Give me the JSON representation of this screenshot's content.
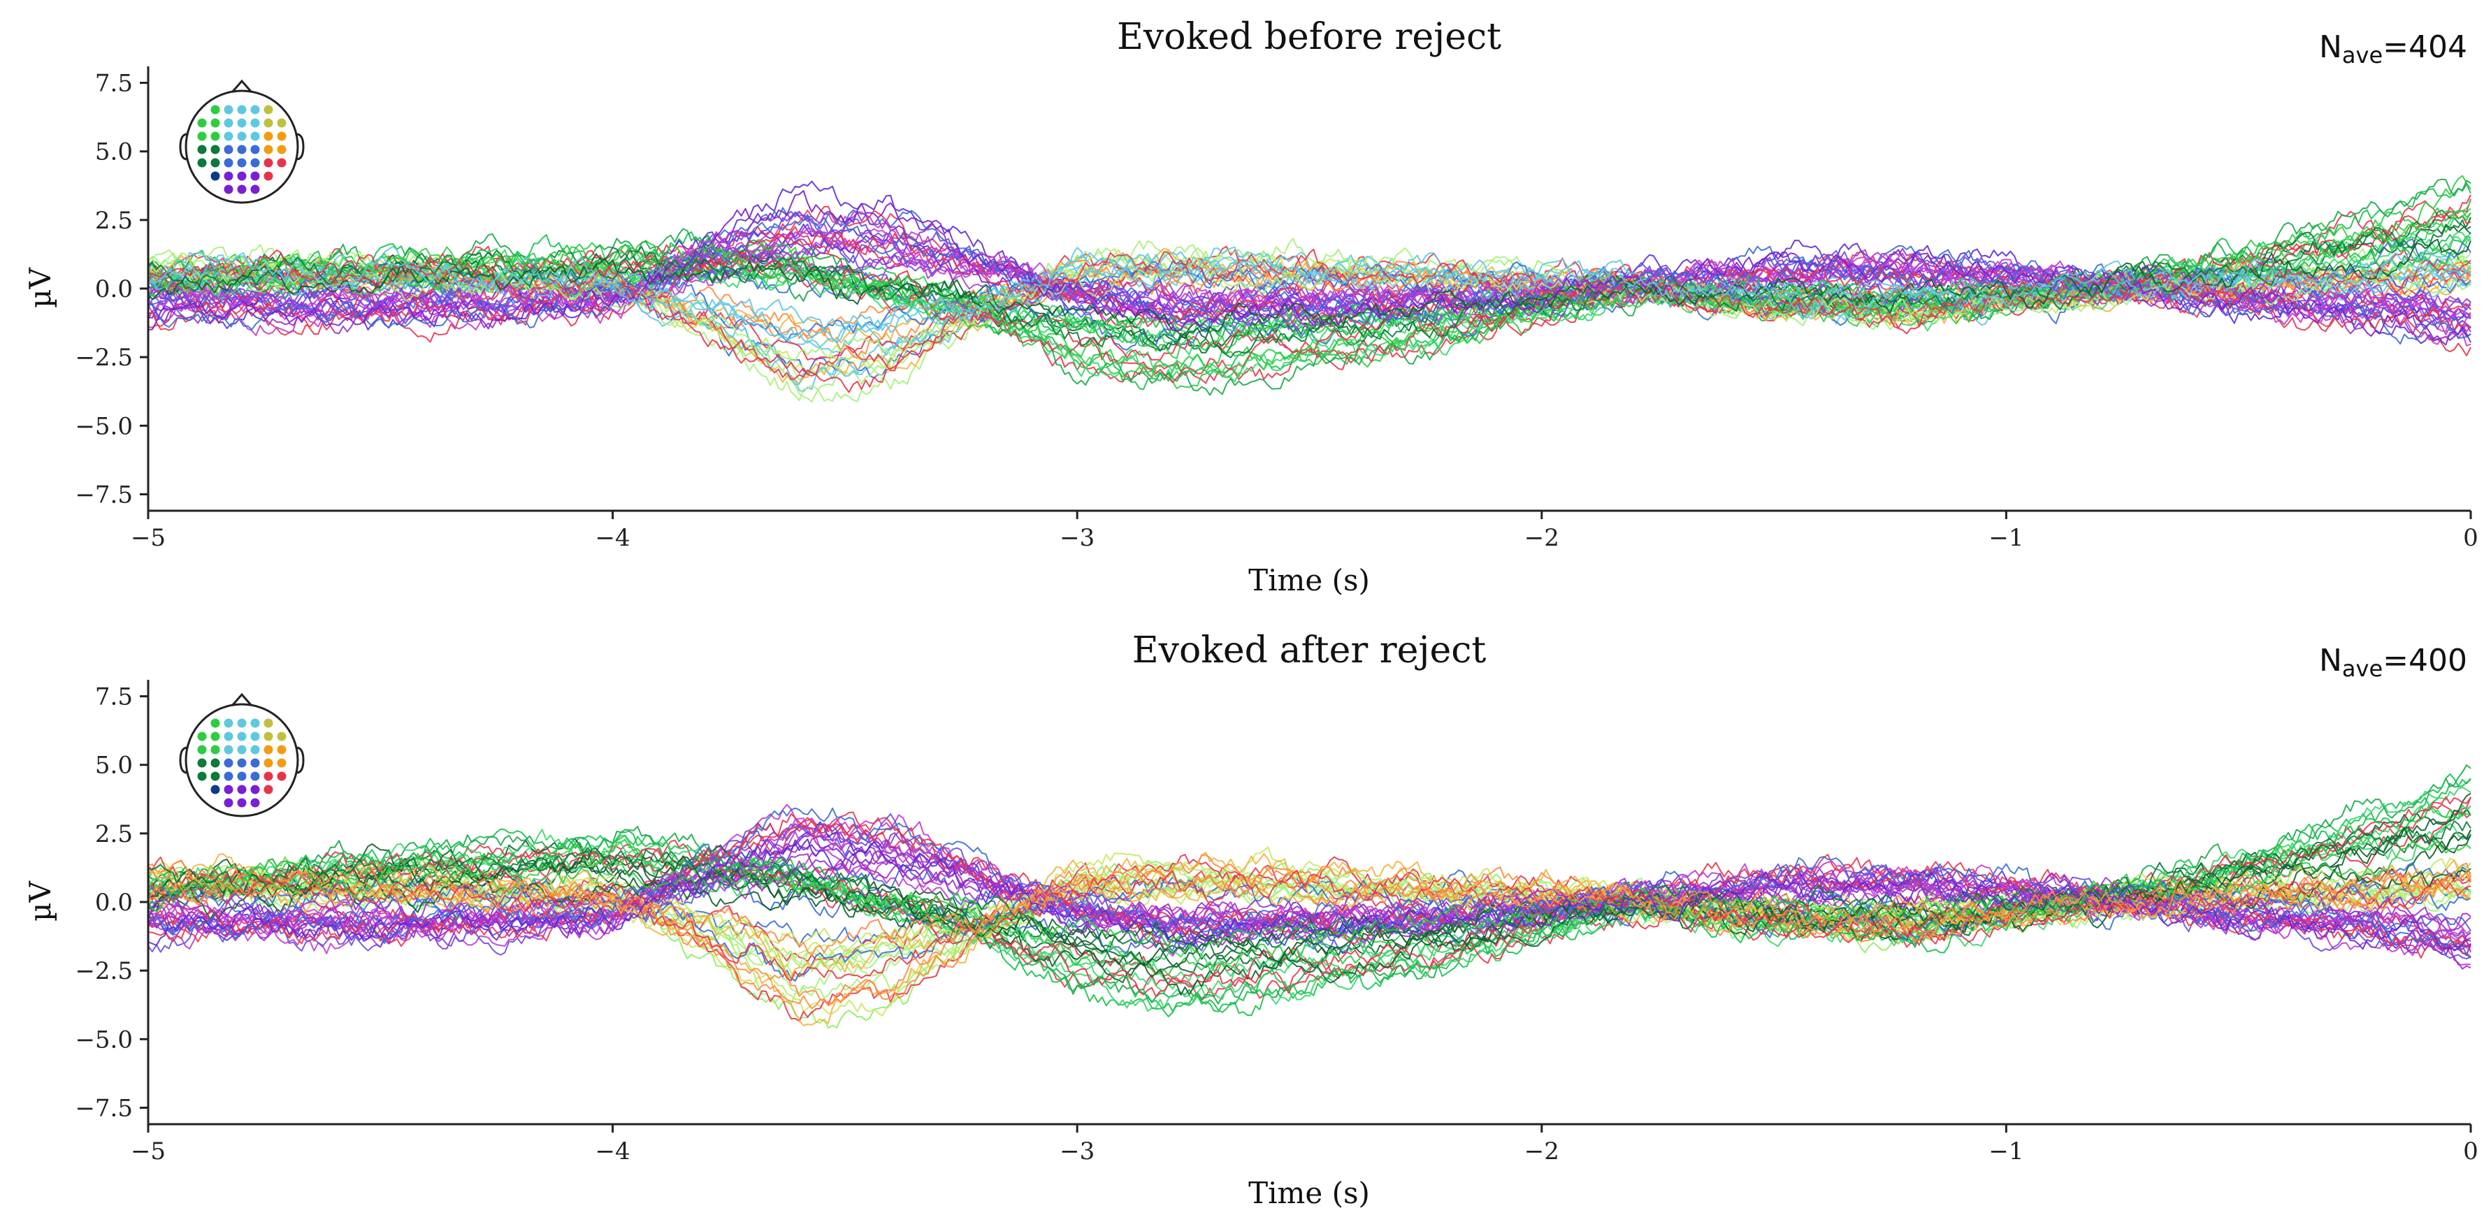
{
  "chart_data": [
    {
      "type": "line",
      "title": "Evoked before reject",
      "nave_label": "N",
      "nave_sub": "ave",
      "nave_value": "=404",
      "xlabel": "Time (s)",
      "ylabel": "µV",
      "xlim": [
        -5,
        0
      ],
      "ylim": [
        -8.1,
        8.1
      ],
      "xticks": [
        -5,
        -4,
        -3,
        -2,
        -1,
        0
      ],
      "xtick_labels": [
        "−5",
        "−4",
        "−3",
        "−2",
        "−1",
        "0"
      ],
      "yticks": [
        7.5,
        5.0,
        2.5,
        0.0,
        -2.5,
        -5.0,
        -7.5
      ],
      "ytick_labels": [
        "7.5",
        "5.0",
        "2.5",
        "0.0",
        "−2.5",
        "−5.0",
        "−7.5"
      ],
      "grid": false,
      "n_channels": 60,
      "series_profile": {
        "x": [
          -5.0,
          -4.5,
          -4.0,
          -3.8,
          -3.6,
          -3.4,
          -3.2,
          -3.0,
          -2.8,
          -2.5,
          -2.2,
          -2.0,
          -1.8,
          -1.5,
          -1.2,
          -1.0,
          -0.7,
          -0.5,
          -0.2,
          0.0
        ],
        "occipital_green": [
          0.5,
          1.0,
          1.2,
          1.5,
          1.0,
          0.0,
          -1.0,
          -2.5,
          -3.2,
          -2.5,
          -1.8,
          -0.8,
          0.0,
          -0.5,
          -0.8,
          -0.4,
          0.5,
          1.2,
          2.5,
          3.6
        ],
        "frontal_purple": [
          -0.8,
          -1.0,
          -0.6,
          1.5,
          2.8,
          2.4,
          1.0,
          -0.3,
          -1.0,
          -0.8,
          -0.6,
          -0.3,
          0.2,
          0.8,
          0.9,
          0.6,
          0.0,
          -0.6,
          -1.0,
          -1.8
        ],
        "temporal_lightgreen": [
          0.8,
          0.6,
          0.2,
          -1.5,
          -3.6,
          -3.0,
          -1.0,
          0.8,
          1.0,
          0.8,
          0.5,
          0.4,
          0.0,
          -0.8,
          -1.0,
          -0.5,
          0.0,
          0.2,
          0.5,
          0.8
        ]
      },
      "sensor_colors": [
        "#2ecc40",
        "#0b7a3b",
        "#7a1fd1",
        "#b23ad6",
        "#8cf060",
        "#f39c12",
        "#e8344b",
        "#3a6bd6",
        "#c0c040",
        "#ff69b4",
        "#5ec8e0",
        "#0d3b8c"
      ]
    },
    {
      "type": "line",
      "title": "Evoked after reject",
      "nave_label": "N",
      "nave_sub": "ave",
      "nave_value": "=400",
      "xlabel": "Time (s)",
      "ylabel": "µV",
      "xlim": [
        -5,
        0
      ],
      "ylim": [
        -8.1,
        8.1
      ],
      "xticks": [
        -5,
        -4,
        -3,
        -2,
        -1,
        0
      ],
      "xtick_labels": [
        "−5",
        "−4",
        "−3",
        "−2",
        "−1",
        "0"
      ],
      "yticks": [
        7.5,
        5.0,
        2.5,
        0.0,
        -2.5,
        -5.0,
        -7.5
      ],
      "ytick_labels": [
        "7.5",
        "5.0",
        "2.5",
        "0.0",
        "−2.5",
        "−5.0",
        "−7.5"
      ],
      "grid": false,
      "n_channels": 60,
      "series_profile": {
        "x": [
          -5.0,
          -4.5,
          -4.0,
          -3.8,
          -3.6,
          -3.4,
          -3.2,
          -3.0,
          -2.8,
          -2.5,
          -2.2,
          -2.0,
          -1.8,
          -1.5,
          -1.2,
          -1.0,
          -0.7,
          -0.5,
          -0.2,
          0.0
        ],
        "occipital_green": [
          0.6,
          1.5,
          2.0,
          1.6,
          1.0,
          0.0,
          -1.0,
          -2.3,
          -3.0,
          -2.4,
          -1.7,
          -0.8,
          0.0,
          -0.6,
          -0.9,
          -0.4,
          0.6,
          1.4,
          2.8,
          4.0
        ],
        "frontal_purple": [
          -0.8,
          -1.0,
          -0.6,
          1.4,
          2.7,
          2.4,
          1.0,
          -0.3,
          -1.0,
          -0.8,
          -0.6,
          -0.3,
          0.2,
          0.8,
          0.9,
          0.6,
          0.0,
          -0.6,
          -1.0,
          -1.8
        ],
        "temporal_lightgreen": [
          0.8,
          0.6,
          0.2,
          -1.5,
          -3.6,
          -3.0,
          -1.0,
          0.8,
          1.0,
          0.8,
          0.5,
          0.4,
          0.0,
          -0.8,
          -1.0,
          -0.5,
          0.0,
          0.2,
          0.5,
          0.8
        ]
      },
      "sensor_colors": [
        "#2ecc40",
        "#0b7a3b",
        "#7a1fd1",
        "#b23ad6",
        "#8cf060",
        "#f39c12",
        "#e8344b",
        "#3a6bd6",
        "#c0c040",
        "#ff69b4",
        "#5ec8e0",
        "#0d3b8c"
      ]
    }
  ]
}
